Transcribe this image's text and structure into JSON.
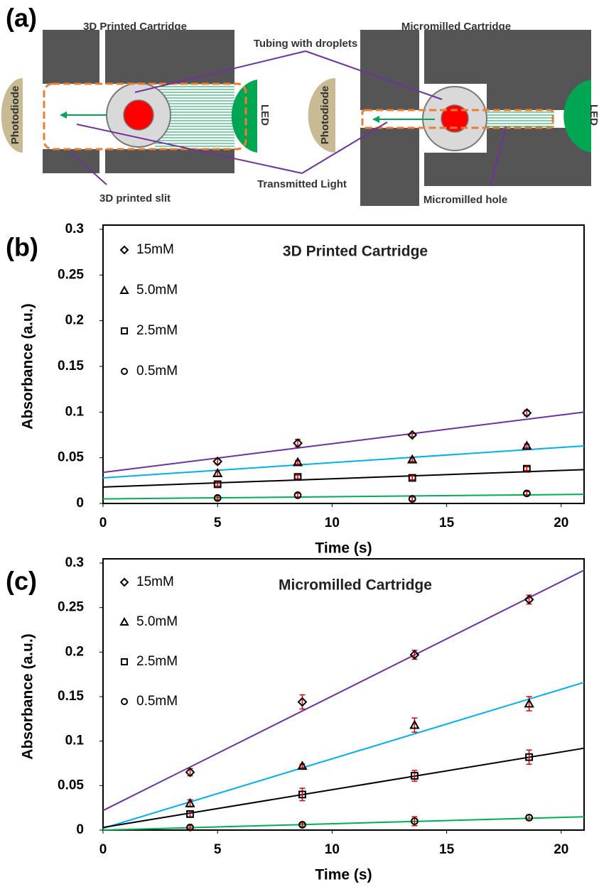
{
  "diagram": {
    "panel_label": "(a)",
    "left_title": "3D Printed Cartridge",
    "right_title": "Micromilled Cartridge",
    "tubing_label": "Tubing with droplets",
    "left_photodiode": "Photodiode",
    "left_led": "LED",
    "right_photodiode": "Photodiode",
    "right_led": "LED",
    "slit_label": "3D printed slit",
    "light_label": "Transmitted Light",
    "hole_label": "Micromilled hole"
  },
  "chart_data": [
    {
      "type": "scatter",
      "panel_label": "(b)",
      "title": "3D Printed Cartridge",
      "x_label": "Time (s)",
      "y_label": "Absorbance (a.u.)",
      "x": [
        5,
        8.5,
        13.5,
        18.5
      ],
      "xlim": [
        0,
        21
      ],
      "xticks": [
        0,
        5,
        10,
        15,
        20
      ],
      "ylim": [
        0,
        0.3
      ],
      "yticks": [
        0,
        0.05,
        0.1,
        0.15,
        0.2,
        0.25,
        0.3
      ],
      "marker_color": "#000000",
      "error_color": "#e00000",
      "series": [
        {
          "name": "15mM",
          "marker": "diamond",
          "color": "#7030a0",
          "values": [
            0.046,
            0.066,
            0.075,
            0.099
          ],
          "errors": [
            0.003,
            0.004,
            0.002,
            0.003
          ],
          "trend": [
            0.034,
            0.1
          ]
        },
        {
          "name": "5.0mM",
          "marker": "triangle",
          "color": "#00b0f0",
          "values": [
            0.033,
            0.045,
            0.048,
            0.063
          ],
          "errors": [
            0.003,
            0.002,
            0.002,
            0.002
          ],
          "trend": [
            0.028,
            0.063
          ]
        },
        {
          "name": "2.5mM",
          "marker": "square",
          "color": "#000000",
          "values": [
            0.021,
            0.029,
            0.028,
            0.038
          ],
          "errors": [
            0.002,
            0.002,
            0.002,
            0.002
          ],
          "trend": [
            0.018,
            0.037
          ]
        },
        {
          "name": "0.5mM",
          "marker": "circle",
          "color": "#00b050",
          "values": [
            0.006,
            0.009,
            0.005,
            0.011
          ],
          "errors": [
            0.002,
            0.002,
            0.002,
            0.002
          ],
          "trend": [
            0.005,
            0.01
          ]
        }
      ]
    },
    {
      "type": "scatter",
      "panel_label": "(c)",
      "title": "Micromilled Cartridge",
      "x_label": "Time (s)",
      "y_label": "Absorbance (a.u.)",
      "x": [
        3.8,
        8.7,
        13.6,
        18.6
      ],
      "xlim": [
        0,
        21
      ],
      "xticks": [
        0,
        5,
        10,
        15,
        20
      ],
      "ylim": [
        0,
        0.3
      ],
      "yticks": [
        0,
        0.05,
        0.1,
        0.15,
        0.2,
        0.25,
        0.3
      ],
      "marker_color": "#000000",
      "error_color": "#e00000",
      "series": [
        {
          "name": "15mM",
          "marker": "diamond",
          "color": "#7030a0",
          "values": [
            0.065,
            0.144,
            0.197,
            0.259
          ],
          "errors": [
            0.004,
            0.008,
            0.005,
            0.005
          ],
          "trend": [
            0.022,
            0.292
          ]
        },
        {
          "name": "5.0mM",
          "marker": "triangle",
          "color": "#00b0f0",
          "values": [
            0.03,
            0.072,
            0.118,
            0.142
          ],
          "errors": [
            0.004,
            0.002,
            0.008,
            0.008
          ],
          "trend": [
            0.002,
            0.166
          ]
        },
        {
          "name": "2.5mM",
          "marker": "square",
          "color": "#000000",
          "values": [
            0.018,
            0.04,
            0.061,
            0.082
          ],
          "errors": [
            0.003,
            0.007,
            0.006,
            0.008
          ],
          "trend": [
            0.003,
            0.092
          ]
        },
        {
          "name": "0.5mM",
          "marker": "circle",
          "color": "#00b050",
          "values": [
            0.003,
            0.006,
            0.01,
            0.014
          ],
          "errors": [
            0.002,
            0.002,
            0.005,
            0.003
          ],
          "trend": [
            0,
            0.015
          ]
        }
      ]
    }
  ]
}
